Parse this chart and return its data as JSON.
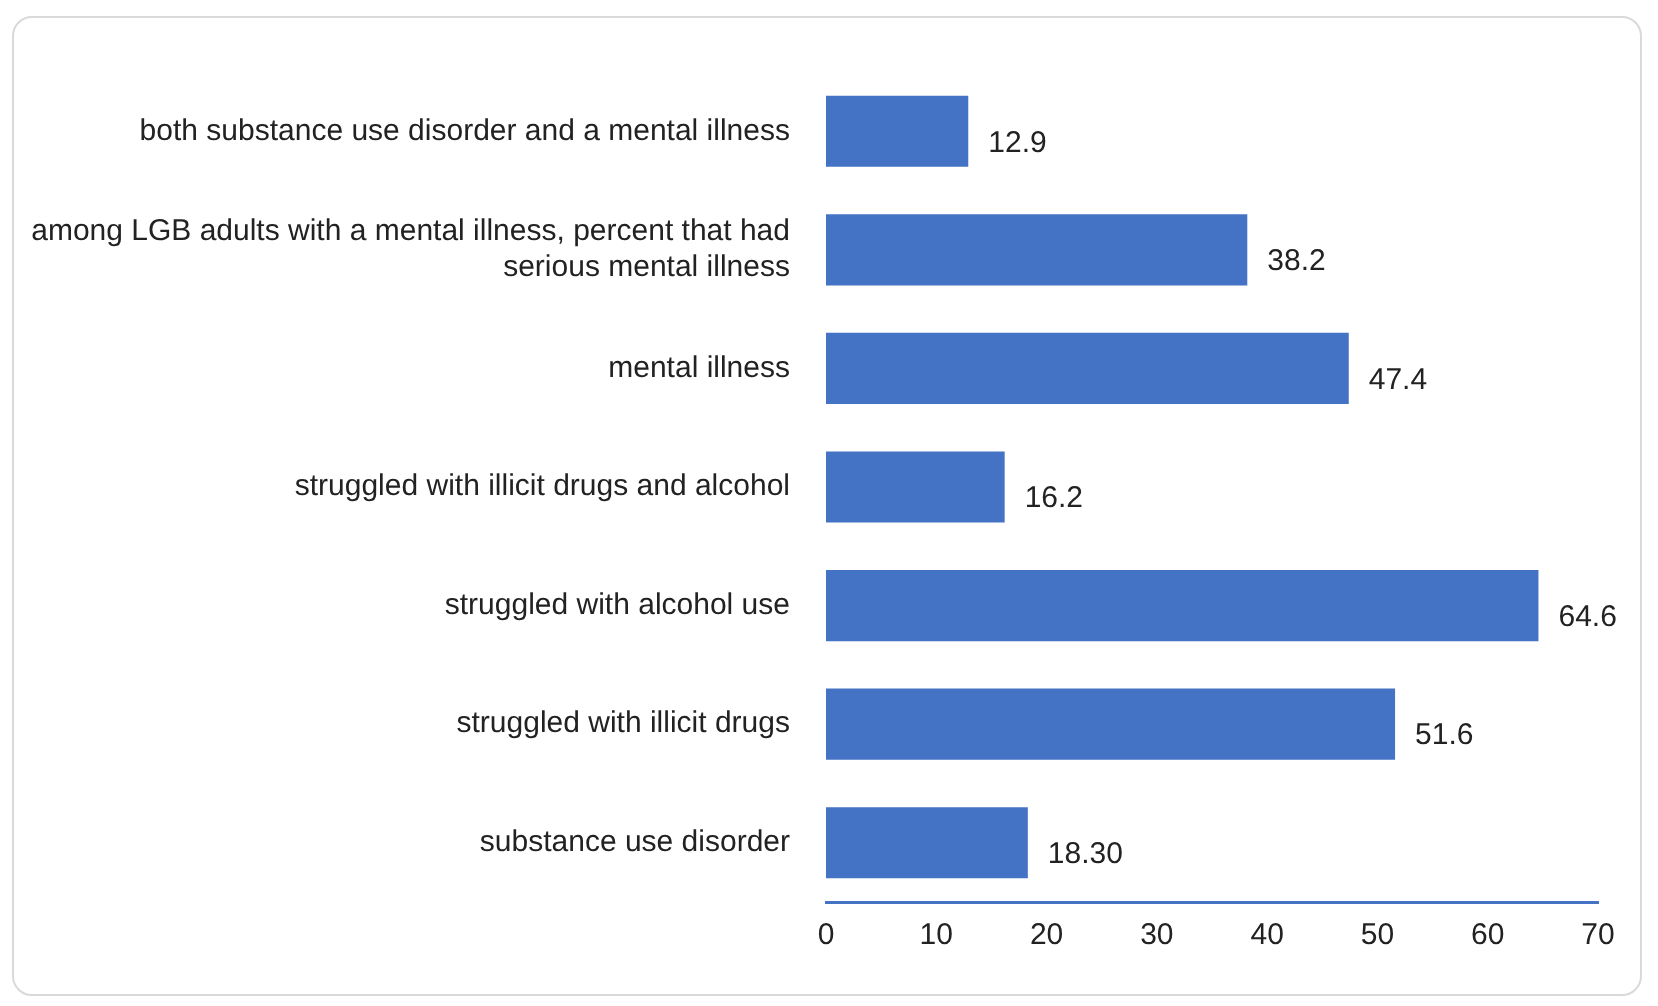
{
  "chart_data": {
    "type": "bar",
    "orientation": "horizontal",
    "categories": [
      "both substance use disorder and a mental illness",
      "among LGB adults with a mental illness, percent that had serious mental illness",
      "mental illness",
      "struggled with illicit drugs and alcohol",
      "struggled with alcohol use",
      "struggled with illicit drugs",
      "substance use disorder"
    ],
    "values": [
      12.9,
      38.2,
      47.4,
      16.2,
      64.6,
      51.6,
      18.3
    ],
    "value_labels": [
      "12.9",
      "38.2",
      "47.4",
      "16.2",
      "64.6",
      "51.6",
      "18.30"
    ],
    "color": "#4472c4",
    "xlim": [
      0,
      70
    ],
    "xticks": [
      0,
      10,
      20,
      30,
      40,
      50,
      60,
      70
    ],
    "grid": false,
    "legend": false
  }
}
